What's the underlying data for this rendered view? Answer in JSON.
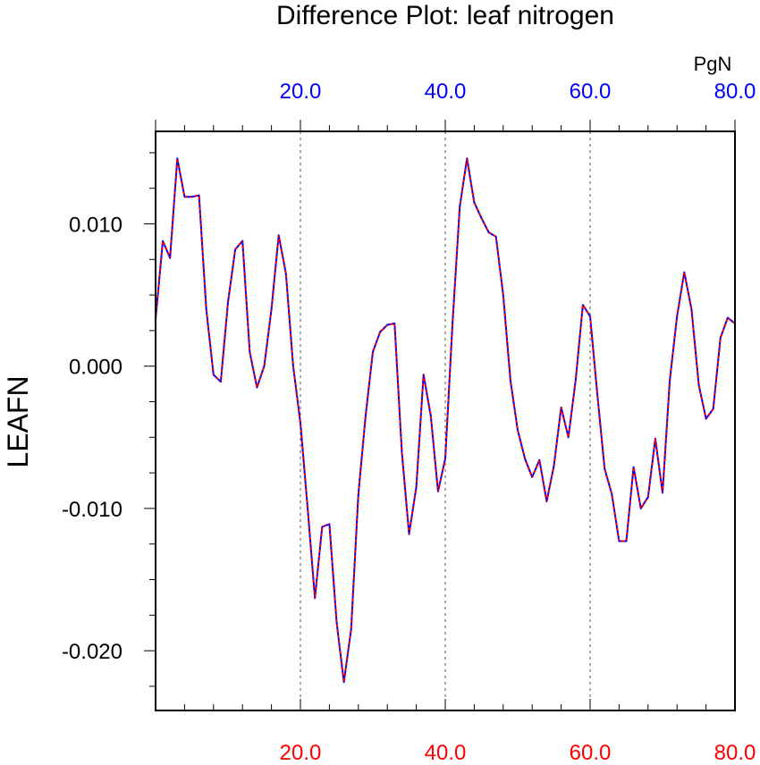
{
  "chart_data": {
    "type": "line",
    "title": "Difference Plot: leaf nitrogen",
    "ylabel": "LEAFN",
    "units": "PgN",
    "xlim": [
      0,
      80
    ],
    "ylim": [
      -0.0242,
      0.0165
    ],
    "x_ticks": [
      20,
      40,
      60,
      80
    ],
    "x_tick_labels": [
      "20.0",
      "40.0",
      "60.0",
      "80.0"
    ],
    "top_tick_labels": [
      "20.0",
      "40.0",
      "60.0",
      "80.0"
    ],
    "y_ticks": [
      0.01,
      0.0,
      -0.01,
      -0.02
    ],
    "y_tick_labels": [
      "0.010",
      "0.000",
      "-0.010",
      "-0.020"
    ],
    "grid": "vertical dashed at 20, 40, 60",
    "series": [
      {
        "name": "LEAFN difference",
        "colors": [
          "#0000ff",
          "#ff0000"
        ],
        "x": [
          0,
          1,
          2,
          3,
          4,
          5,
          6,
          7,
          8,
          9,
          10,
          11,
          12,
          13,
          14,
          15,
          16,
          17,
          18,
          19,
          20,
          21,
          22,
          23,
          24,
          25,
          26,
          27,
          28,
          29,
          30,
          31,
          32,
          33,
          34,
          35,
          36,
          37,
          38,
          39,
          40,
          41,
          42,
          43,
          44,
          45,
          46,
          47,
          48,
          49,
          50,
          51,
          52,
          53,
          54,
          55,
          56,
          57,
          58,
          59,
          60,
          61,
          62,
          63,
          64,
          65,
          66,
          67,
          68,
          69,
          70,
          71,
          72,
          73,
          74,
          75,
          76,
          77,
          78,
          79,
          80
        ],
        "values": [
          0.0033,
          0.0088,
          0.0076,
          0.0146,
          0.0119,
          0.0119,
          0.012,
          0.004,
          -0.0006,
          -0.0011,
          0.0045,
          0.0082,
          0.0088,
          0.001,
          -0.0015,
          0.0,
          0.004,
          0.0092,
          0.0065,
          0.0,
          -0.004,
          -0.01,
          -0.0163,
          -0.0113,
          -0.0111,
          -0.018,
          -0.0222,
          -0.0185,
          -0.009,
          -0.0035,
          0.001,
          0.0024,
          0.0029,
          0.003,
          -0.006,
          -0.0118,
          -0.0085,
          -0.0006,
          -0.0035,
          -0.0088,
          -0.0065,
          0.003,
          0.0112,
          0.0146,
          0.0115,
          0.0104,
          0.0094,
          0.0091,
          0.005,
          -0.001,
          -0.0045,
          -0.0065,
          -0.0078,
          -0.0066,
          -0.0095,
          -0.007,
          -0.0029,
          -0.005,
          -0.001,
          0.0043,
          0.0035,
          -0.002,
          -0.0072,
          -0.009,
          -0.0123,
          -0.0123,
          -0.0071,
          -0.01,
          -0.0092,
          -0.0051,
          -0.0089,
          -0.001,
          0.0035,
          0.0066,
          0.004,
          -0.0013,
          -0.0037,
          -0.003,
          0.002,
          0.0034,
          0.003
        ]
      }
    ]
  }
}
